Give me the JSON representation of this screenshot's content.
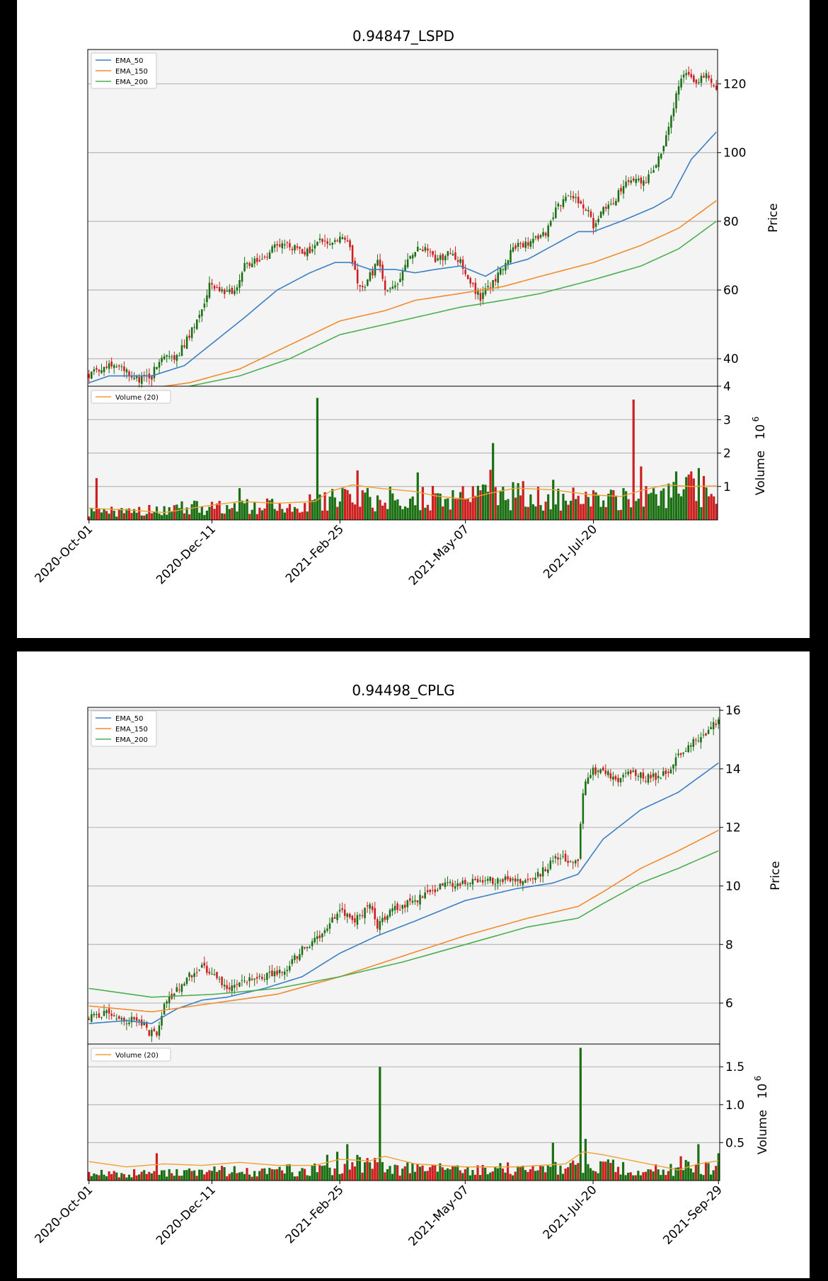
{
  "colors": {
    "up": "#1a6f12",
    "down": "#cc1f1f",
    "ema50": "#3b7fc4",
    "ema150": "#f08c2e",
    "ema200": "#4caf50",
    "volume_ma": "#f0a030",
    "panel_bg": "#f4f4f4"
  },
  "chart_data": [
    {
      "type": "candlestick",
      "title": "0.94847_LSPD",
      "price_label": "Price",
      "volume_label": "Volume",
      "volume_exponent_label": "10",
      "volume_exponent": "6",
      "legend_price": [
        "EMA_50",
        "EMA_150",
        "EMA_200"
      ],
      "legend_volume": [
        "Volume (20)"
      ],
      "price_ticks": [
        "40",
        "60",
        "80",
        "100",
        "120"
      ],
      "price_ylim": [
        32,
        130
      ],
      "volume_ticks": [
        "1",
        "2",
        "3",
        "4"
      ],
      "volume_ylim": [
        0,
        4
      ],
      "x_ticks": [
        "2020-Oct-01",
        "2020-Dec-11",
        "2021-Feb-25",
        "2021-May-07",
        "2021-Jul-20"
      ],
      "x_tick_index": [
        0,
        49,
        100,
        150,
        201
      ],
      "n_bars": 251,
      "close_anchors": [
        [
          0,
          35
        ],
        [
          5,
          37
        ],
        [
          8,
          39
        ],
        [
          15,
          36
        ],
        [
          20,
          34
        ],
        [
          25,
          35
        ],
        [
          28,
          40
        ],
        [
          35,
          41
        ],
        [
          38,
          44
        ],
        [
          45,
          54
        ],
        [
          48,
          61
        ],
        [
          55,
          59
        ],
        [
          58,
          60
        ],
        [
          62,
          67
        ],
        [
          70,
          70
        ],
        [
          75,
          73
        ],
        [
          78,
          74
        ],
        [
          82,
          72
        ],
        [
          87,
          71
        ],
        [
          92,
          74
        ],
        [
          97,
          73
        ],
        [
          100,
          76
        ],
        [
          104,
          72
        ],
        [
          108,
          60
        ],
        [
          112,
          64
        ],
        [
          115,
          68
        ],
        [
          118,
          61
        ],
        [
          122,
          61
        ],
        [
          126,
          67
        ],
        [
          130,
          72
        ],
        [
          136,
          71
        ],
        [
          138,
          68
        ],
        [
          144,
          71
        ],
        [
          148,
          68
        ],
        [
          152,
          62
        ],
        [
          156,
          58
        ],
        [
          160,
          61
        ],
        [
          164,
          66
        ],
        [
          170,
          73
        ],
        [
          176,
          74
        ],
        [
          182,
          77
        ],
        [
          186,
          84
        ],
        [
          190,
          86
        ],
        [
          194,
          87
        ],
        [
          198,
          84
        ],
        [
          201,
          79
        ],
        [
          205,
          83
        ],
        [
          210,
          87
        ],
        [
          214,
          92
        ],
        [
          218,
          93
        ],
        [
          222,
          91
        ],
        [
          226,
          97
        ],
        [
          230,
          104
        ],
        [
          234,
          117
        ],
        [
          238,
          124
        ],
        [
          242,
          120
        ],
        [
          246,
          123
        ],
        [
          250,
          118
        ]
      ],
      "ema50_anchors": [
        [
          0,
          33
        ],
        [
          8,
          35
        ],
        [
          18,
          35
        ],
        [
          25,
          35
        ],
        [
          38,
          38
        ],
        [
          50,
          45
        ],
        [
          62,
          52
        ],
        [
          75,
          60
        ],
        [
          88,
          65
        ],
        [
          98,
          68
        ],
        [
          104,
          68
        ],
        [
          112,
          66
        ],
        [
          122,
          66
        ],
        [
          130,
          65
        ],
        [
          138,
          66
        ],
        [
          148,
          67
        ],
        [
          158,
          64
        ],
        [
          165,
          67
        ],
        [
          175,
          69
        ],
        [
          185,
          73
        ],
        [
          195,
          77
        ],
        [
          201,
          77
        ],
        [
          212,
          80
        ],
        [
          225,
          84
        ],
        [
          232,
          87
        ],
        [
          240,
          98
        ],
        [
          250,
          106
        ]
      ],
      "ema150_anchors": [
        [
          30,
          32
        ],
        [
          40,
          33
        ],
        [
          60,
          37
        ],
        [
          80,
          44
        ],
        [
          100,
          51
        ],
        [
          118,
          54
        ],
        [
          130,
          57
        ],
        [
          148,
          59
        ],
        [
          165,
          61
        ],
        [
          180,
          64
        ],
        [
          201,
          68
        ],
        [
          220,
          73
        ],
        [
          235,
          78
        ],
        [
          250,
          86
        ]
      ],
      "ema200_anchors": [
        [
          40,
          32
        ],
        [
          60,
          35
        ],
        [
          80,
          40
        ],
        [
          100,
          47
        ],
        [
          118,
          50
        ],
        [
          130,
          52
        ],
        [
          148,
          55
        ],
        [
          165,
          57
        ],
        [
          180,
          59
        ],
        [
          201,
          63
        ],
        [
          220,
          67
        ],
        [
          235,
          72
        ],
        [
          250,
          80
        ]
      ],
      "volume_base": [
        [
          0,
          0.25
        ],
        [
          20,
          0.3
        ],
        [
          40,
          0.4
        ],
        [
          60,
          0.45
        ],
        [
          80,
          0.45
        ],
        [
          95,
          0.6
        ],
        [
          105,
          0.8
        ],
        [
          115,
          0.7
        ],
        [
          130,
          0.7
        ],
        [
          150,
          0.75
        ],
        [
          165,
          0.8
        ],
        [
          180,
          0.8
        ],
        [
          200,
          0.7
        ],
        [
          220,
          0.85
        ],
        [
          240,
          1.05
        ],
        [
          250,
          1.0
        ]
      ],
      "volume_spikes": [
        [
          3,
          1.25
        ],
        [
          60,
          0.95
        ],
        [
          91,
          3.65
        ],
        [
          107,
          1.48
        ],
        [
          131,
          1.42
        ],
        [
          160,
          1.5
        ],
        [
          161,
          2.3
        ],
        [
          171,
          1.1
        ],
        [
          185,
          1.2
        ],
        [
          217,
          3.6
        ],
        [
          220,
          1.6
        ],
        [
          234,
          1.45
        ],
        [
          243,
          1.55
        ]
      ],
      "volume_ma_anchors": [
        [
          0,
          0.35
        ],
        [
          15,
          0.3
        ],
        [
          30,
          0.22
        ],
        [
          45,
          0.4
        ],
        [
          60,
          0.55
        ],
        [
          75,
          0.5
        ],
        [
          90,
          0.55
        ],
        [
          96,
          0.85
        ],
        [
          105,
          1.05
        ],
        [
          115,
          0.95
        ],
        [
          130,
          0.85
        ],
        [
          138,
          0.72
        ],
        [
          150,
          0.62
        ],
        [
          160,
          0.8
        ],
        [
          170,
          0.95
        ],
        [
          185,
          0.9
        ],
        [
          200,
          0.75
        ],
        [
          212,
          0.7
        ],
        [
          220,
          0.88
        ],
        [
          230,
          1.05
        ],
        [
          240,
          1.0
        ],
        [
          250,
          1.02
        ]
      ]
    },
    {
      "type": "candlestick",
      "title": "0.94498_CPLG",
      "price_label": "Price",
      "volume_label": "Volume",
      "volume_exponent_label": "10",
      "volume_exponent": "6",
      "legend_price": [
        "EMA_50",
        "EMA_150",
        "EMA_200"
      ],
      "legend_volume": [
        "Volume (20)"
      ],
      "price_ticks": [
        "6",
        "8",
        "10",
        "12",
        "14",
        "16"
      ],
      "price_ylim": [
        4.6,
        16.1
      ],
      "volume_ticks": [
        "0.5",
        "1.0",
        "1.5"
      ],
      "volume_ylim": [
        0,
        1.8
      ],
      "x_ticks": [
        "2020-Oct-01",
        "2020-Dec-11",
        "2021-Feb-25",
        "2021-May-07",
        "2021-Jul-20",
        "2021-Sep-29"
      ],
      "x_tick_index": [
        0,
        49,
        100,
        150,
        201,
        251
      ],
      "n_bars": 252,
      "close_anchors": [
        [
          0,
          5.5
        ],
        [
          8,
          5.7
        ],
        [
          15,
          5.4
        ],
        [
          20,
          5.4
        ],
        [
          24,
          5.0
        ],
        [
          27,
          4.9
        ],
        [
          30,
          5.9
        ],
        [
          35,
          6.5
        ],
        [
          40,
          6.9
        ],
        [
          45,
          7.2
        ],
        [
          50,
          6.9
        ],
        [
          55,
          6.4
        ],
        [
          62,
          6.8
        ],
        [
          70,
          6.9
        ],
        [
          78,
          7.1
        ],
        [
          85,
          7.8
        ],
        [
          92,
          8.3
        ],
        [
          98,
          8.9
        ],
        [
          100,
          9.3
        ],
        [
          105,
          8.7
        ],
        [
          112,
          9.3
        ],
        [
          115,
          8.6
        ],
        [
          120,
          9.1
        ],
        [
          130,
          9.5
        ],
        [
          140,
          10.0
        ],
        [
          150,
          10.1
        ],
        [
          160,
          10.2
        ],
        [
          170,
          10.2
        ],
        [
          178,
          10.3
        ],
        [
          186,
          10.9
        ],
        [
          195,
          10.9
        ],
        [
          196,
          12.0
        ],
        [
          197,
          13.2
        ],
        [
          200,
          13.9
        ],
        [
          205,
          14.0
        ],
        [
          210,
          13.5
        ],
        [
          215,
          14.0
        ],
        [
          222,
          13.7
        ],
        [
          230,
          13.8
        ],
        [
          235,
          14.4
        ],
        [
          240,
          14.8
        ],
        [
          245,
          15.2
        ],
        [
          251,
          15.6
        ]
      ],
      "ema50_anchors": [
        [
          0,
          5.3
        ],
        [
          15,
          5.4
        ],
        [
          25,
          5.3
        ],
        [
          35,
          5.8
        ],
        [
          45,
          6.1
        ],
        [
          55,
          6.2
        ],
        [
          70,
          6.5
        ],
        [
          85,
          6.9
        ],
        [
          100,
          7.7
        ],
        [
          115,
          8.3
        ],
        [
          130,
          8.8
        ],
        [
          150,
          9.5
        ],
        [
          170,
          9.9
        ],
        [
          185,
          10.1
        ],
        [
          195,
          10.4
        ],
        [
          205,
          11.6
        ],
        [
          220,
          12.6
        ],
        [
          235,
          13.2
        ],
        [
          251,
          14.2
        ]
      ],
      "ema150_anchors": [
        [
          0,
          5.9
        ],
        [
          25,
          5.7
        ],
        [
          50,
          6.0
        ],
        [
          75,
          6.3
        ],
        [
          100,
          6.9
        ],
        [
          125,
          7.6
        ],
        [
          150,
          8.3
        ],
        [
          175,
          8.9
        ],
        [
          195,
          9.3
        ],
        [
          205,
          9.8
        ],
        [
          220,
          10.6
        ],
        [
          235,
          11.2
        ],
        [
          251,
          11.9
        ]
      ],
      "ema200_anchors": [
        [
          0,
          6.5
        ],
        [
          25,
          6.2
        ],
        [
          50,
          6.3
        ],
        [
          75,
          6.5
        ],
        [
          100,
          6.9
        ],
        [
          125,
          7.4
        ],
        [
          150,
          8.0
        ],
        [
          175,
          8.6
        ],
        [
          195,
          8.9
        ],
        [
          205,
          9.4
        ],
        [
          220,
          10.1
        ],
        [
          235,
          10.6
        ],
        [
          251,
          11.2
        ]
      ],
      "volume_base": [
        [
          0,
          0.1
        ],
        [
          30,
          0.12
        ],
        [
          60,
          0.14
        ],
        [
          90,
          0.16
        ],
        [
          100,
          0.2
        ],
        [
          110,
          0.25
        ],
        [
          120,
          0.18
        ],
        [
          150,
          0.15
        ],
        [
          180,
          0.18
        ],
        [
          195,
          0.25
        ],
        [
          205,
          0.22
        ],
        [
          220,
          0.14
        ],
        [
          235,
          0.18
        ],
        [
          251,
          0.22
        ]
      ],
      "volume_spikes": [
        [
          27,
          0.36
        ],
        [
          95,
          0.34
        ],
        [
          99,
          0.38
        ],
        [
          103,
          0.48
        ],
        [
          116,
          1.5
        ],
        [
          185,
          0.5
        ],
        [
          196,
          1.75
        ],
        [
          198,
          0.55
        ],
        [
          236,
          0.32
        ],
        [
          243,
          0.48
        ],
        [
          251,
          0.36
        ]
      ],
      "volume_ma_anchors": [
        [
          0,
          0.25
        ],
        [
          15,
          0.18
        ],
        [
          30,
          0.22
        ],
        [
          45,
          0.2
        ],
        [
          60,
          0.24
        ],
        [
          75,
          0.2
        ],
        [
          90,
          0.2
        ],
        [
          100,
          0.28
        ],
        [
          112,
          0.26
        ],
        [
          118,
          0.32
        ],
        [
          130,
          0.22
        ],
        [
          150,
          0.18
        ],
        [
          170,
          0.18
        ],
        [
          190,
          0.22
        ],
        [
          197,
          0.38
        ],
        [
          205,
          0.34
        ],
        [
          220,
          0.24
        ],
        [
          235,
          0.14
        ],
        [
          243,
          0.22
        ],
        [
          251,
          0.26
        ]
      ]
    }
  ]
}
